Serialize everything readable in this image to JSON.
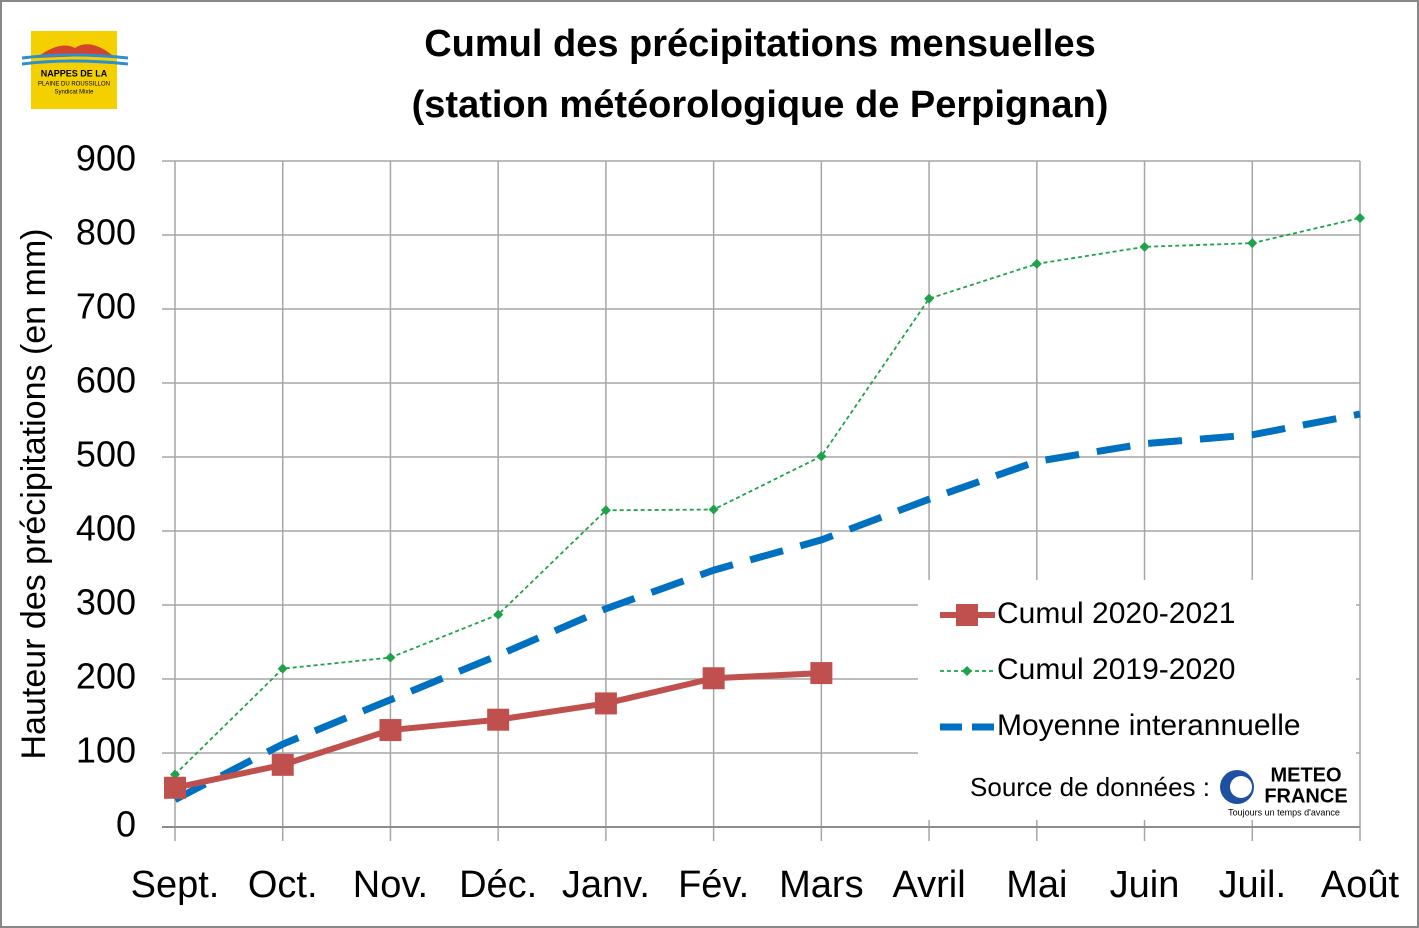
{
  "chart_data": {
    "type": "line",
    "title": [
      "Cumul des précipitations mensuelles",
      "(station météorologique de Perpignan)"
    ],
    "y_label": "Hauteur des précipitations (en mm)",
    "categories": [
      "Sept.",
      "Oct.",
      "Nov.",
      "Déc.",
      "Janv.",
      "Fév.",
      "Mars",
      "Avril",
      "Mai",
      "Juin",
      "Juil.",
      "Août"
    ],
    "series": [
      {
        "name": "Cumul 2020-2021",
        "color": "#c0504d",
        "values": [
          53,
          84,
          131,
          145,
          167,
          201,
          208,
          null,
          null,
          null,
          null,
          null
        ]
      },
      {
        "name": "Cumul 2019-2020",
        "color": "#1ea34a",
        "values": [
          71,
          214,
          229,
          287,
          428,
          429,
          501,
          714,
          761,
          784,
          789,
          823
        ]
      },
      {
        "name": "Moyenne interannuelle",
        "color": "#0070c0",
        "values": [
          37,
          112,
          172,
          232,
          295,
          347,
          388,
          443,
          494,
          518,
          530,
          558
        ]
      }
    ],
    "ylim": [
      0,
      900
    ],
    "yticks": [
      0,
      100,
      200,
      300,
      400,
      500,
      600,
      700,
      800,
      900
    ],
    "grid": true,
    "source": "Source de données :"
  },
  "logos": {
    "nappes": [
      "NAPPES DE LA",
      "PLAINE DU ROUSSILLON",
      "Syndicat Mixte"
    ],
    "meteo": [
      "METEO",
      "FRANCE",
      "Toujours un temps d'avance"
    ]
  }
}
